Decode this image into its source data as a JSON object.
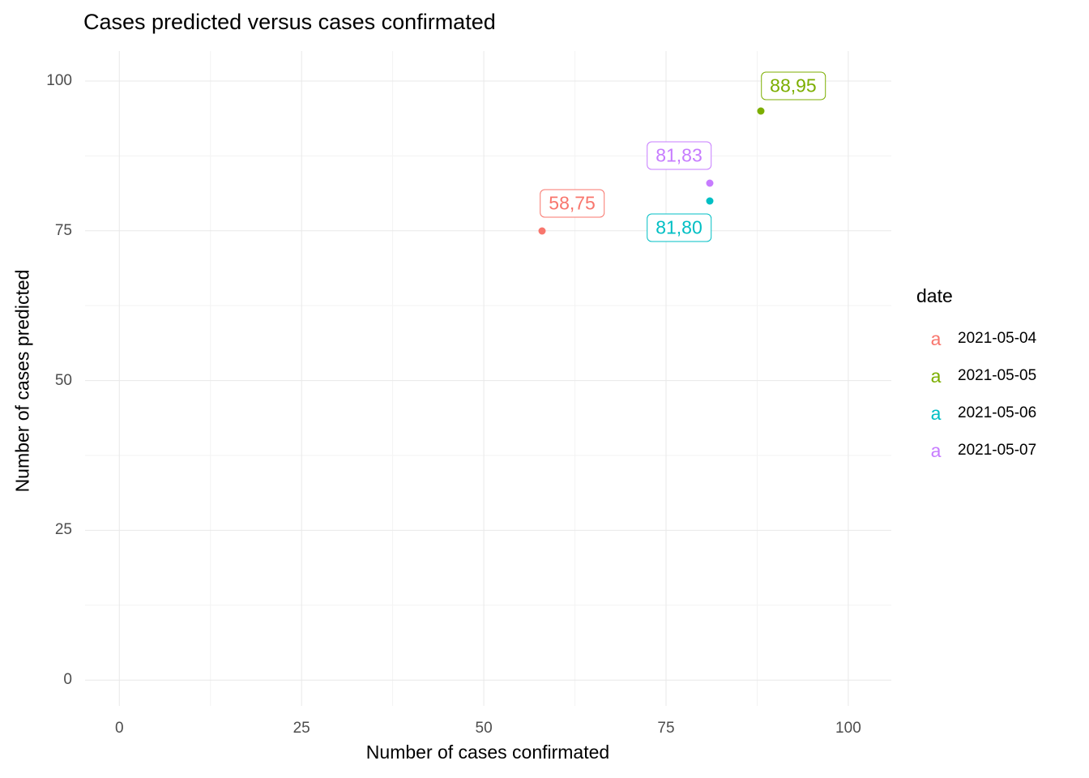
{
  "title": "Cases predicted versus cases confirmated",
  "chart_data": {
    "type": "scatter",
    "title": "Cases predicted versus cases confirmated",
    "xlabel": "Number of cases confirmated",
    "ylabel": "Number of cases predicted",
    "xlim": [
      -4.7,
      105.9
    ],
    "ylim": [
      -4.3,
      105.0
    ],
    "xticks": [
      0,
      25,
      50,
      75,
      100
    ],
    "yticks": [
      0,
      25,
      50,
      75,
      100
    ],
    "grid": true,
    "grid_major_color": "#e8e8e8",
    "grid_minor_color": "#f3f3f3",
    "legend_position": "right",
    "legend_title": "date",
    "legend_key_glyph": "a",
    "series": [
      {
        "name": "2021-05-04",
        "color": "#F8766D",
        "x": 58,
        "y": 75,
        "label": "58,75",
        "label_dx": 37,
        "label_dy": -34
      },
      {
        "name": "2021-05-05",
        "color": "#7CAE00",
        "x": 88,
        "y": 95,
        "label": "88,95",
        "label_dx": 40,
        "label_dy": -31
      },
      {
        "name": "2021-05-06",
        "color": "#00BFC4",
        "x": 81,
        "y": 80,
        "label": "81,80",
        "label_dx": -38,
        "label_dy": 33
      },
      {
        "name": "2021-05-07",
        "color": "#C77CFF",
        "x": 81,
        "y": 83,
        "label": "81,83",
        "label_dx": -38,
        "label_dy": -34
      }
    ]
  }
}
